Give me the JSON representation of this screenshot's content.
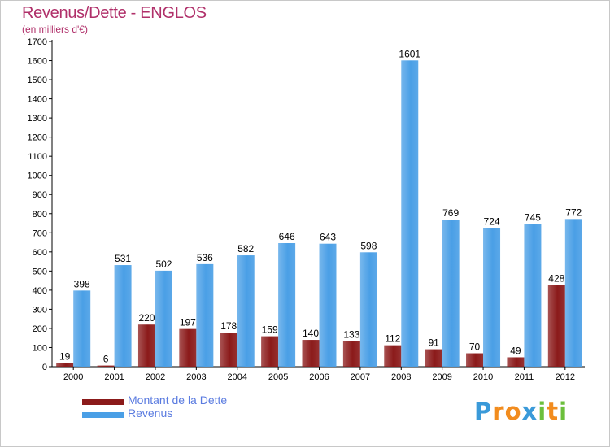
{
  "colors": {
    "debt": "#8b1a1a",
    "revenue": "#4a9fe6",
    "title": "#b0306a",
    "legend_text": "#5a7be0"
  },
  "chart_data": {
    "type": "bar",
    "title": "Revenus/Dette - ENGLOS",
    "subtitle": "(en milliers d'€)",
    "xlabel": "",
    "ylabel": "",
    "ylim": [
      0,
      1700
    ],
    "yticks": [
      0,
      100,
      200,
      300,
      400,
      500,
      600,
      700,
      800,
      900,
      1000,
      1100,
      1200,
      1300,
      1400,
      1500,
      1600,
      1700
    ],
    "grid": false,
    "legend_position": "bottom-left",
    "categories": [
      "2000",
      "2001",
      "2002",
      "2003",
      "2004",
      "2005",
      "2006",
      "2007",
      "2008",
      "2009",
      "2010",
      "2011",
      "2012"
    ],
    "series": [
      {
        "name": "Montant de la Dette",
        "color": "#8b1a1a",
        "values": [
          19,
          6,
          220,
          197,
          178,
          159,
          140,
          133,
          112,
          91,
          70,
          49,
          428
        ]
      },
      {
        "name": "Revenus",
        "color": "#4a9fe6",
        "values": [
          398,
          531,
          502,
          536,
          582,
          646,
          643,
          598,
          1601,
          769,
          724,
          745,
          772
        ]
      }
    ]
  },
  "logo": {
    "letters": [
      "P",
      "r",
      "o",
      "x",
      "i",
      "t",
      "i"
    ],
    "letter_colors": [
      "#3a9ad9",
      "#f28c1e",
      "#f28c1e",
      "#3a9ad9",
      "#6cbf3c",
      "#f28c1e",
      "#6cbf3c"
    ]
  }
}
